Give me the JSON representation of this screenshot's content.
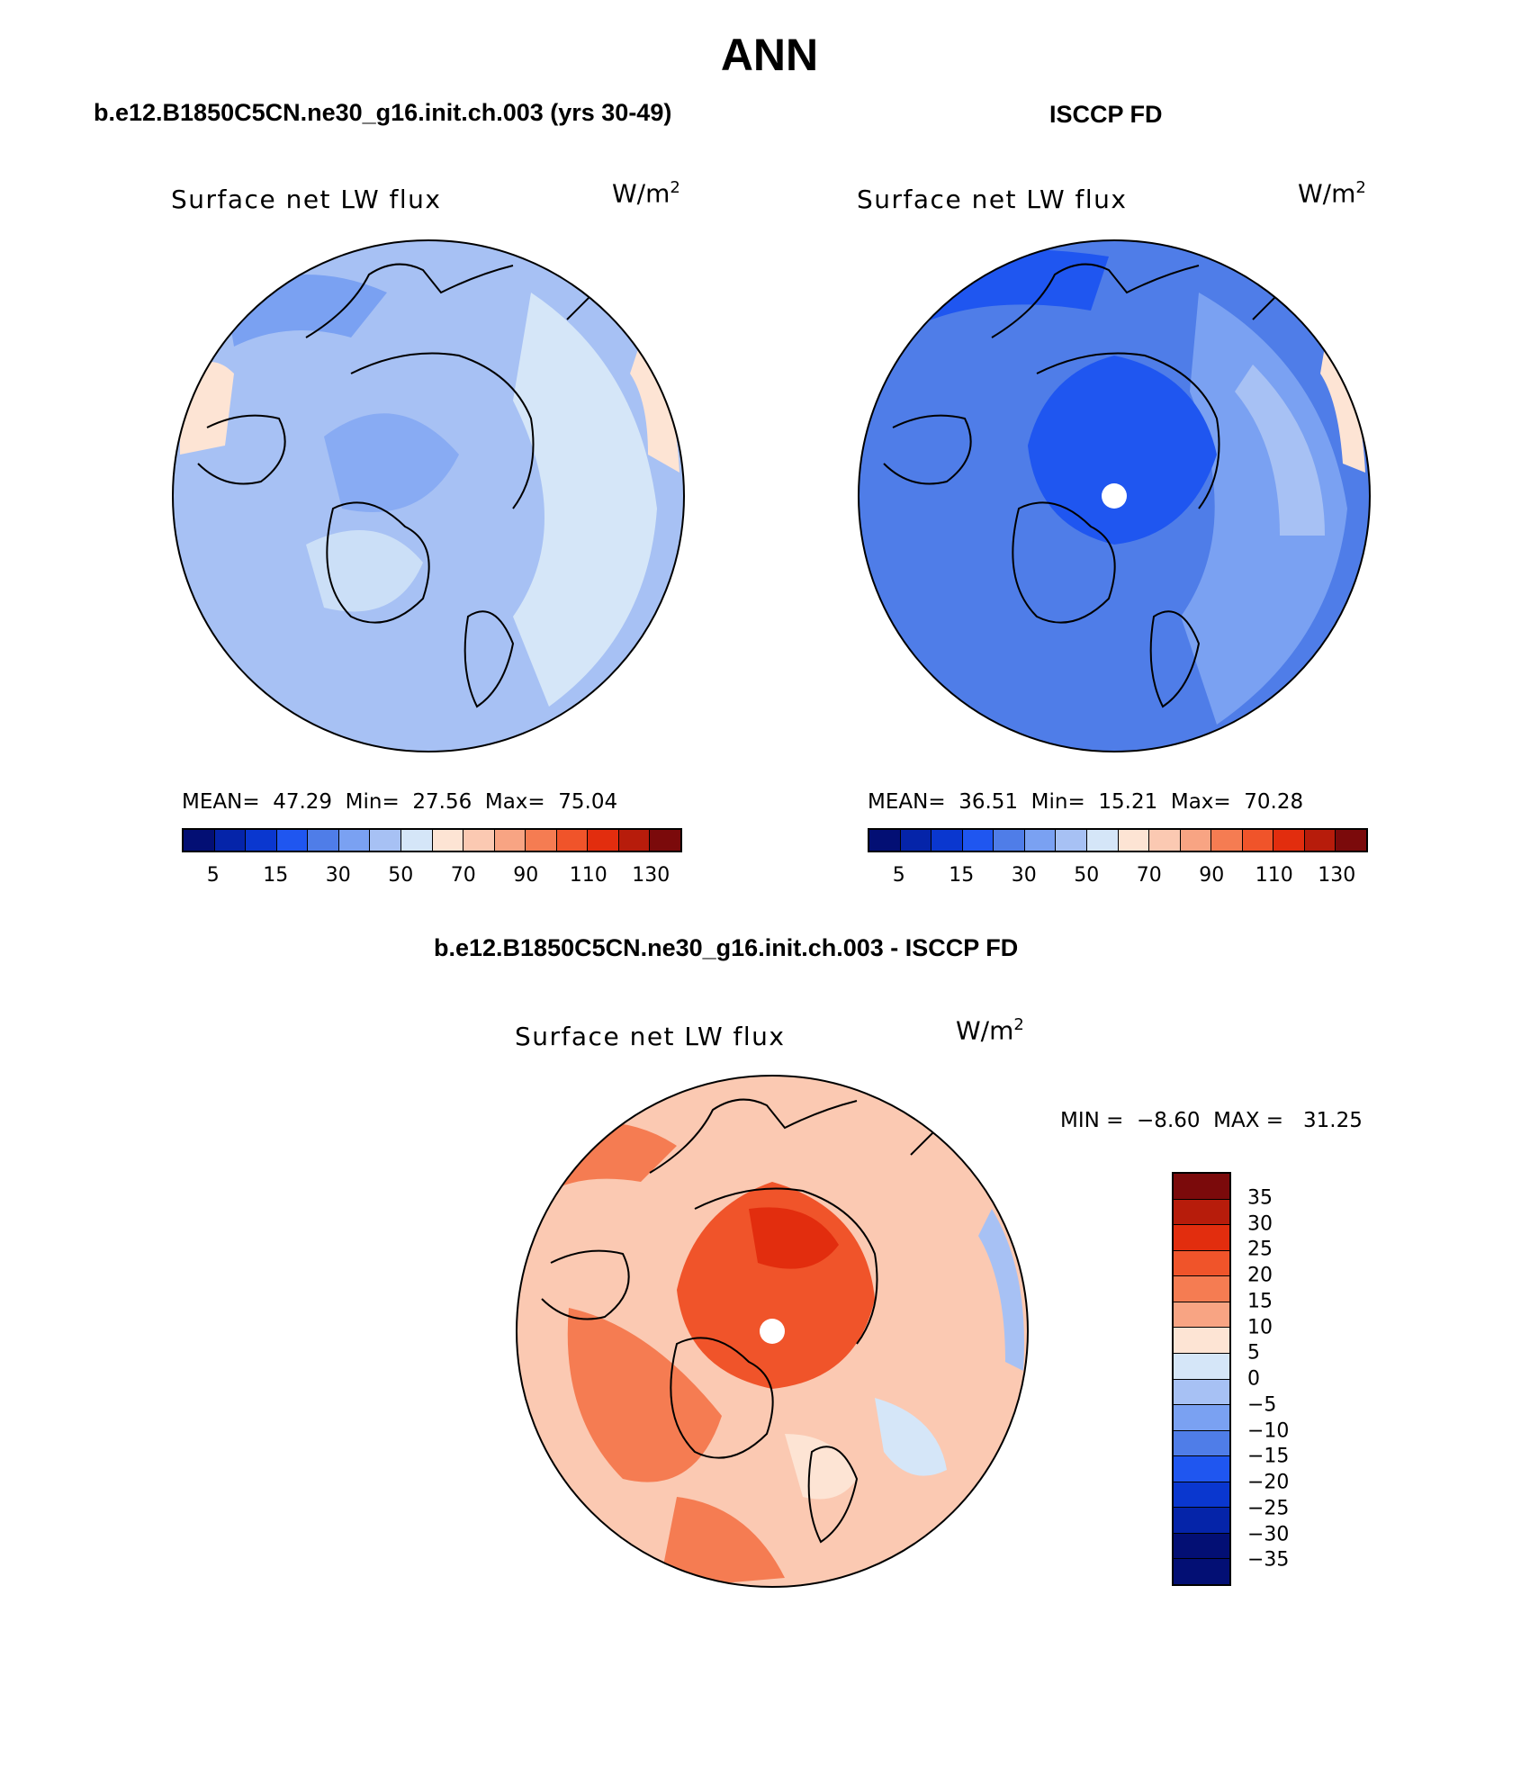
{
  "title": "ANN",
  "panels": [
    {
      "subtitle": "b.e12.B1850C5CN.ne30_g16.init.ch.003 (yrs 30-49)",
      "variable": "Surface net LW flux",
      "units_base": "W/m",
      "units_exp": "2",
      "stats_line": "MEAN=  47.29  Min=  27.56  Max=  75.04",
      "dominant_color": "#a7c1f4"
    },
    {
      "subtitle": "ISCCP FD",
      "variable": "Surface net LW flux",
      "units_base": "W/m",
      "units_exp": "2",
      "stats_line": "MEAN=  36.51  Min=  15.21  Max=  70.28",
      "dominant_color": "#4f7de8"
    },
    {
      "subtitle": "b.e12.B1850C5CN.ne30_g16.init.ch.003 - ISCCP FD",
      "variable": "Surface net LW flux",
      "units_base": "W/m",
      "units_exp": "2",
      "stats_line": "MIN =  −8.60  MAX =   31.25",
      "dominant_color": "#f8b39a"
    }
  ],
  "colorbar_abs": {
    "colors": [
      "#030f74",
      "#0524a9",
      "#0a37cf",
      "#1f56f0",
      "#4f7de8",
      "#7aa1f2",
      "#a7c1f4",
      "#d5e6f8",
      "#fde4d4",
      "#fbc9b2",
      "#f8a483",
      "#f57c52",
      "#f0542a",
      "#e22d0e",
      "#b71c0b",
      "#7b0a0b"
    ],
    "tick_labels": [
      "5",
      "15",
      "30",
      "50",
      "70",
      "90",
      "110",
      "130"
    ]
  },
  "colorbar_diff": {
    "colors": [
      "#7b0a0b",
      "#b71c0b",
      "#e22d0e",
      "#f0542a",
      "#f57c52",
      "#f8a483",
      "#fde4d4",
      "#d5e6f8",
      "#a7c1f4",
      "#7aa1f2",
      "#4f7de8",
      "#1f56f0",
      "#0a37cf",
      "#0524a9",
      "#030f74",
      "#030f74"
    ],
    "tick_labels": [
      "35",
      "30",
      "25",
      "20",
      "15",
      "10",
      "5",
      "0",
      "−5",
      "−10",
      "−15",
      "−20",
      "−25",
      "−30",
      "−35"
    ]
  }
}
